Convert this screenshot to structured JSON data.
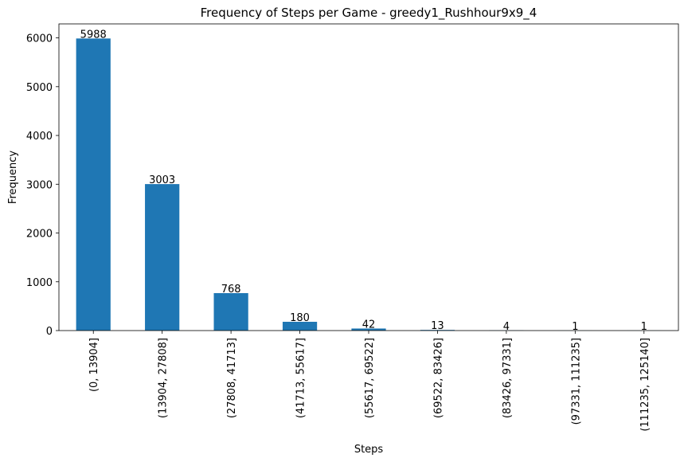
{
  "chart_data": {
    "type": "bar",
    "title": "Frequency of Steps per Game - greedy1_Rushhour9x9_4",
    "xlabel": "Steps",
    "ylabel": "Frequency",
    "categories": [
      "(0, 13904]",
      "(13904, 27808]",
      "(27808, 41713]",
      "(41713, 55617]",
      "(55617, 69522]",
      "(69522, 83426]",
      "(83426, 97331]",
      "(97331, 111235]",
      "(111235, 125140]"
    ],
    "values": [
      5988,
      3003,
      768,
      180,
      42,
      13,
      4,
      1,
      1
    ],
    "yticks": [
      0,
      1000,
      2000,
      3000,
      4000,
      5000,
      6000
    ],
    "ylim": [
      0,
      6287
    ],
    "bar_color": "#1f77b4",
    "grid": false,
    "legend": "none"
  }
}
